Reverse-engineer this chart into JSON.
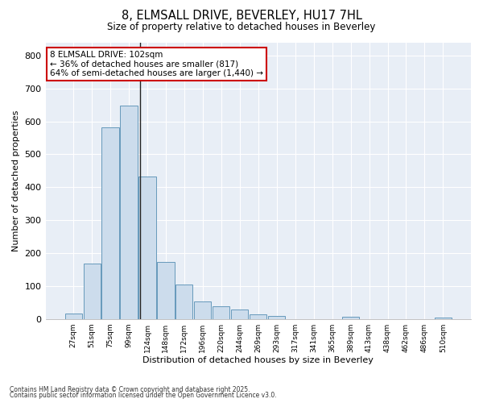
{
  "title_line1": "8, ELMSALL DRIVE, BEVERLEY, HU17 7HL",
  "title_line2": "Size of property relative to detached houses in Beverley",
  "xlabel": "Distribution of detached houses by size in Beverley",
  "ylabel": "Number of detached properties",
  "bar_labels": [
    "27sqm",
    "51sqm",
    "75sqm",
    "99sqm",
    "124sqm",
    "148sqm",
    "172sqm",
    "196sqm",
    "220sqm",
    "244sqm",
    "269sqm",
    "293sqm",
    "317sqm",
    "341sqm",
    "365sqm",
    "389sqm",
    "413sqm",
    "438sqm",
    "462sqm",
    "486sqm",
    "510sqm"
  ],
  "bar_values": [
    17,
    168,
    583,
    648,
    432,
    172,
    104,
    52,
    38,
    29,
    13,
    10,
    0,
    0,
    0,
    6,
    0,
    0,
    0,
    0,
    5
  ],
  "bar_color": "#ccdcec",
  "bar_edge_color": "#6699bb",
  "vline_x": 3.62,
  "vline_color": "#222222",
  "annotation_text": "8 ELMSALL DRIVE: 102sqm\n← 36% of detached houses are smaller (817)\n64% of semi-detached houses are larger (1,440) →",
  "annotation_box_color": "#ffffff",
  "annotation_box_edge_color": "#cc0000",
  "ylim": [
    0,
    840
  ],
  "yticks": [
    0,
    100,
    200,
    300,
    400,
    500,
    600,
    700,
    800
  ],
  "fig_bg_color": "#ffffff",
  "plot_bg_color": "#e8eef6",
  "grid_color": "#ffffff",
  "footnote_line1": "Contains HM Land Registry data © Crown copyright and database right 2025.",
  "footnote_line2": "Contains public sector information licensed under the Open Government Licence v3.0."
}
